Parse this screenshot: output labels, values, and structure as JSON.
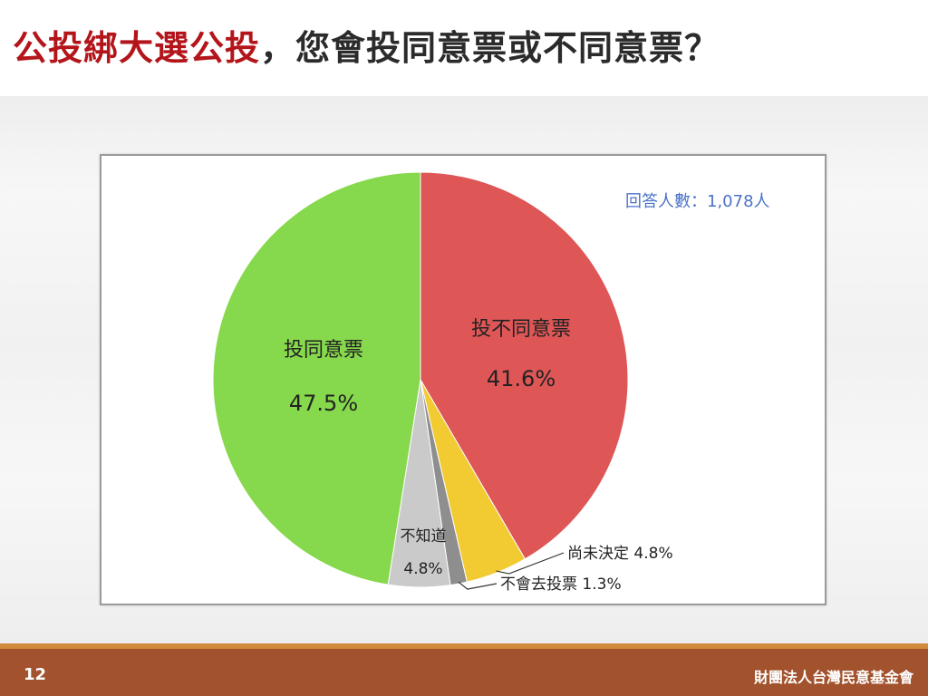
{
  "slide": {
    "title_highlight": "公投綁大選公投",
    "title_rest": "，您會投同意票或不同意票？",
    "page_number": "12",
    "organization": "財團法人台灣民意基金會"
  },
  "chart_data": {
    "type": "pie",
    "note": "回答人數：1,078人",
    "slices": [
      {
        "name": "投不同意票",
        "value": 41.6,
        "label": "41.6%",
        "color": "#de5656"
      },
      {
        "name": "尚未決定",
        "value": 4.8,
        "label": "4.8%",
        "color": "#f2ca32"
      },
      {
        "name": "不會去投票",
        "value": 1.3,
        "label": "1.3%",
        "color": "#8e8e8e"
      },
      {
        "name": "不知道",
        "value": 4.8,
        "label": "4.8%",
        "color": "#cacaca"
      },
      {
        "name": "投同意票",
        "value": 47.5,
        "label": "47.5%",
        "color": "#86d84c"
      }
    ]
  }
}
